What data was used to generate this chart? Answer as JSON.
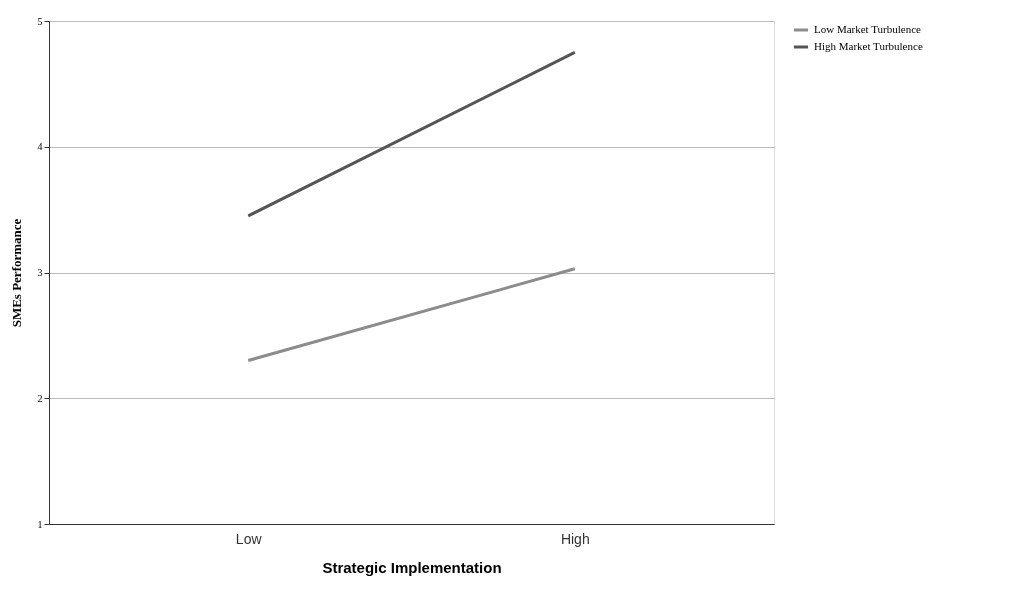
{
  "chart_data": {
    "type": "line",
    "xlabel": "Strategic Implementation",
    "ylabel": "SMEs Performance",
    "categories": [
      "Low",
      "High"
    ],
    "series": [
      {
        "name": "Low Market Turbulence",
        "color": "#8c8c8c",
        "values": [
          2.3,
          3.03
        ]
      },
      {
        "name": "High Market Turbulence",
        "color": "#555555",
        "values": [
          3.45,
          4.75
        ]
      }
    ],
    "ylim": [
      1,
      5
    ],
    "yticks": [
      1,
      2,
      3,
      4,
      5
    ],
    "grid": "y",
    "legend": "right",
    "marker": "none",
    "line_style": "solid"
  }
}
